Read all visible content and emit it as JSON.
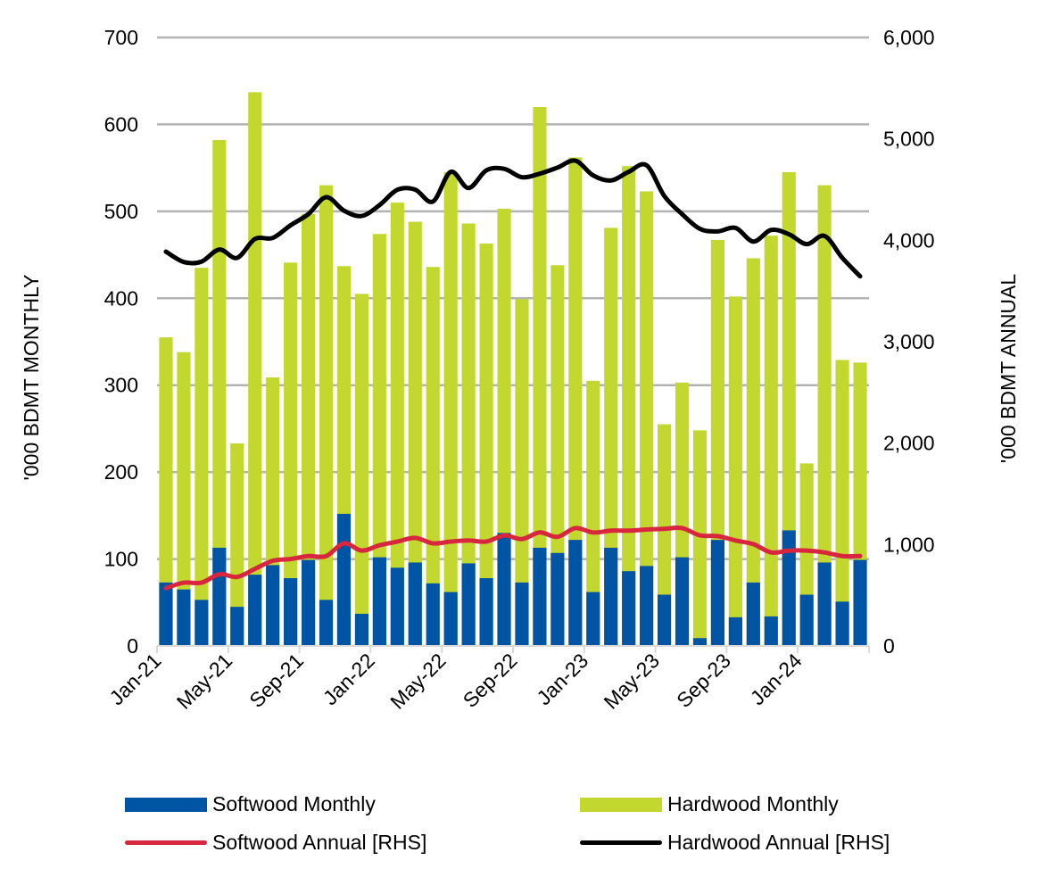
{
  "chart_data": {
    "type": "bar",
    "title": "",
    "categories": [
      "Jan-21",
      "Feb-21",
      "Mar-21",
      "Apr-21",
      "May-21",
      "Jun-21",
      "Jul-21",
      "Aug-21",
      "Sep-21",
      "Oct-21",
      "Nov-21",
      "Dec-21",
      "Jan-22",
      "Feb-22",
      "Mar-22",
      "Apr-22",
      "May-22",
      "Jun-22",
      "Jul-22",
      "Aug-22",
      "Sep-22",
      "Oct-22",
      "Nov-22",
      "Dec-22",
      "Jan-23",
      "Feb-23",
      "Mar-23",
      "Apr-23",
      "May-23",
      "Jun-23",
      "Jul-23",
      "Aug-23",
      "Sep-23",
      "Oct-23",
      "Nov-23",
      "Dec-23",
      "Jan-24",
      "Feb-24",
      "Mar-24",
      "Apr-24"
    ],
    "x_tick_labels": [
      "Jan-21",
      "May-21",
      "Sep-21",
      "Jan-22",
      "May-22",
      "Sep-22",
      "Jan-23",
      "May-23",
      "Sep-23",
      "Jan-24"
    ],
    "ylabel": "'000 BDMT MONTHLY",
    "ylabel_right": "'000 BDMT ANNUAL",
    "ylim": [
      0,
      700
    ],
    "ylim_right": [
      0,
      6000
    ],
    "y_ticks": [
      "0",
      "100",
      "200",
      "300",
      "400",
      "500",
      "600",
      "700"
    ],
    "y_ticks_right": [
      "0",
      "1,000",
      "2,000",
      "3,000",
      "4,000",
      "5,000",
      "6,000"
    ],
    "grid": true,
    "legend_placement": "bottom",
    "series": [
      {
        "name": "Softwood Monthly",
        "kind": "bar",
        "axis": "left",
        "color": "#0054a4",
        "values": [
          73,
          65,
          53,
          113,
          45,
          82,
          93,
          78,
          99,
          53,
          152,
          37,
          102,
          90,
          96,
          72,
          62,
          95,
          78,
          130,
          73,
          113,
          107,
          122,
          62,
          113,
          86,
          92,
          59,
          102,
          9,
          122,
          33,
          73,
          34,
          133,
          59,
          96,
          51,
          99
        ]
      },
      {
        "name": "Hardwood Monthly",
        "kind": "bar",
        "axis": "left",
        "color": "#c3d82f",
        "values": [
          355,
          338,
          435,
          582,
          233,
          637,
          309,
          441,
          497,
          530,
          437,
          405,
          474,
          510,
          488,
          436,
          545,
          486,
          463,
          503,
          399,
          620,
          438,
          562,
          305,
          481,
          552,
          523,
          255,
          303,
          248,
          467,
          402,
          446,
          472,
          545,
          210,
          530,
          329,
          326
        ]
      },
      {
        "name": "Softwood Annual [RHS]",
        "kind": "line",
        "axis": "right",
        "color": "#d7263d",
        "values": [
          570,
          624,
          624,
          707,
          681,
          760,
          840,
          857,
          886,
          886,
          1012,
          940,
          993,
          1029,
          1066,
          1012,
          1029,
          1040,
          1029,
          1090,
          1054,
          1119,
          1076,
          1162,
          1119,
          1137,
          1137,
          1148,
          1155,
          1162,
          1090,
          1083,
          1040,
          1004,
          922,
          940,
          940,
          922,
          886,
          886
        ]
      },
      {
        "name": "Hardwood Annual [RHS]",
        "kind": "line",
        "axis": "right",
        "color": "#000000",
        "values": [
          3888,
          3786,
          3790,
          3909,
          3827,
          4013,
          4023,
          4148,
          4258,
          4425,
          4293,
          4240,
          4347,
          4498,
          4500,
          4382,
          4675,
          4515,
          4690,
          4705,
          4622,
          4657,
          4717,
          4785,
          4640,
          4590,
          4675,
          4740,
          4437,
          4258,
          4113,
          4088,
          4122,
          3988,
          4102,
          4060,
          3962,
          4043,
          3827,
          3645
        ]
      }
    ]
  }
}
